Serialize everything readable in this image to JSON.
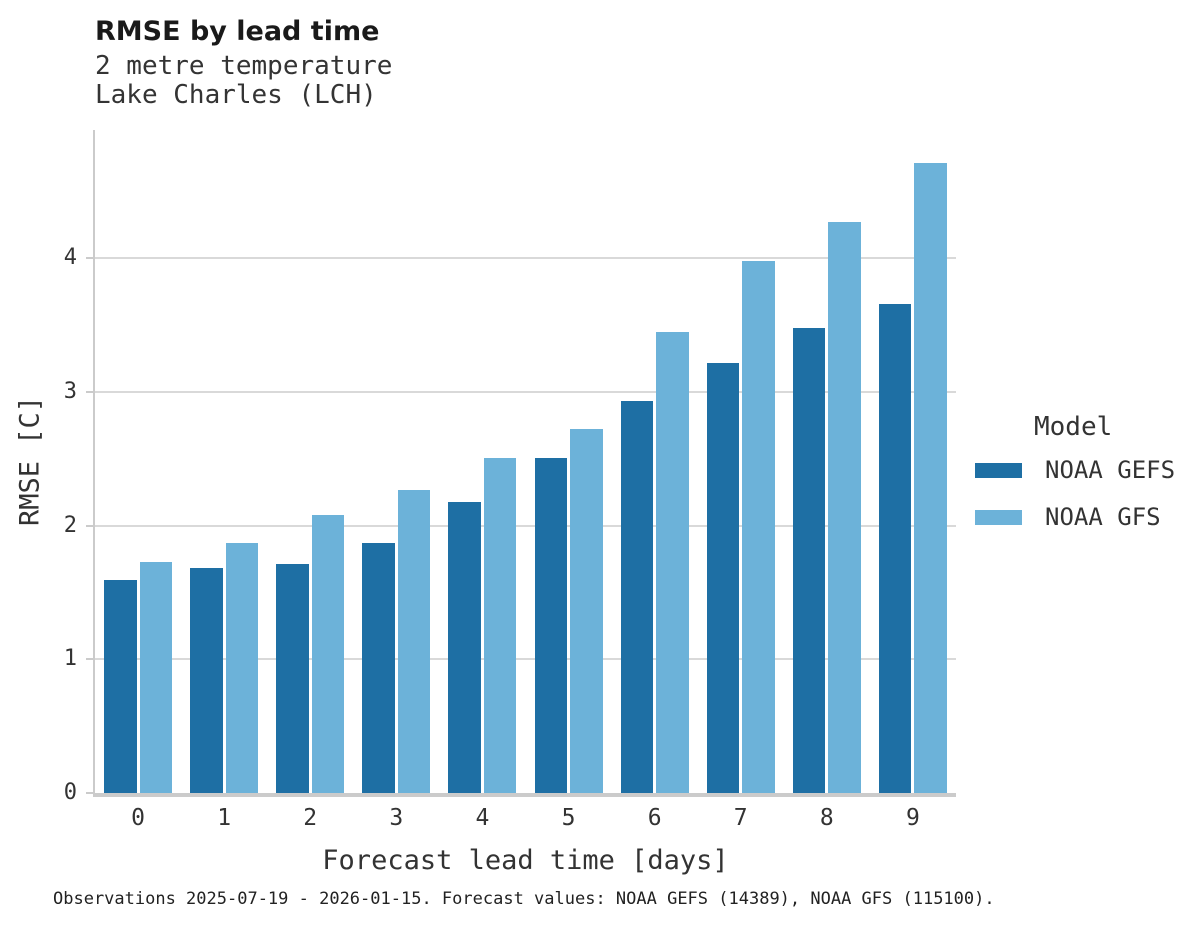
{
  "header": {
    "title": "RMSE by lead time",
    "subtitle_line1": "2 metre temperature",
    "subtitle_line2": "Lake Charles (LCH)"
  },
  "chart_data": {
    "type": "bar",
    "title": "RMSE by lead time",
    "subtitle": [
      "2 metre temperature",
      "Lake Charles (LCH)"
    ],
    "xlabel": "Forecast lead time [days]",
    "ylabel": "RMSE [C]",
    "categories": [
      "0",
      "1",
      "2",
      "3",
      "4",
      "5",
      "6",
      "7",
      "8",
      "9"
    ],
    "series": [
      {
        "name": "NOAA GEFS",
        "color": "#1e6fa4",
        "values": [
          1.59,
          1.68,
          1.71,
          1.87,
          2.18,
          2.51,
          2.93,
          3.22,
          3.48,
          3.66
        ]
      },
      {
        "name": "NOAA GFS",
        "color": "#6cb2d9",
        "values": [
          1.73,
          1.87,
          2.08,
          2.27,
          2.51,
          2.72,
          3.45,
          3.98,
          4.27,
          4.71
        ]
      }
    ],
    "ylim": [
      0,
      4.96
    ],
    "yticks": [
      0,
      1,
      2,
      3,
      4
    ],
    "grid": true,
    "legend_title": "Model",
    "legend_position": "right"
  },
  "legend": {
    "title": "Model",
    "items": [
      {
        "label": "NOAA GEFS",
        "color": "#1e6fa4"
      },
      {
        "label": "NOAA GFS",
        "color": "#6cb2d9"
      }
    ]
  },
  "caption": {
    "text": "Observations 2025-07-19 - 2026-01-15. Forecast values: NOAA GEFS (14389), NOAA GFS (115100)."
  }
}
